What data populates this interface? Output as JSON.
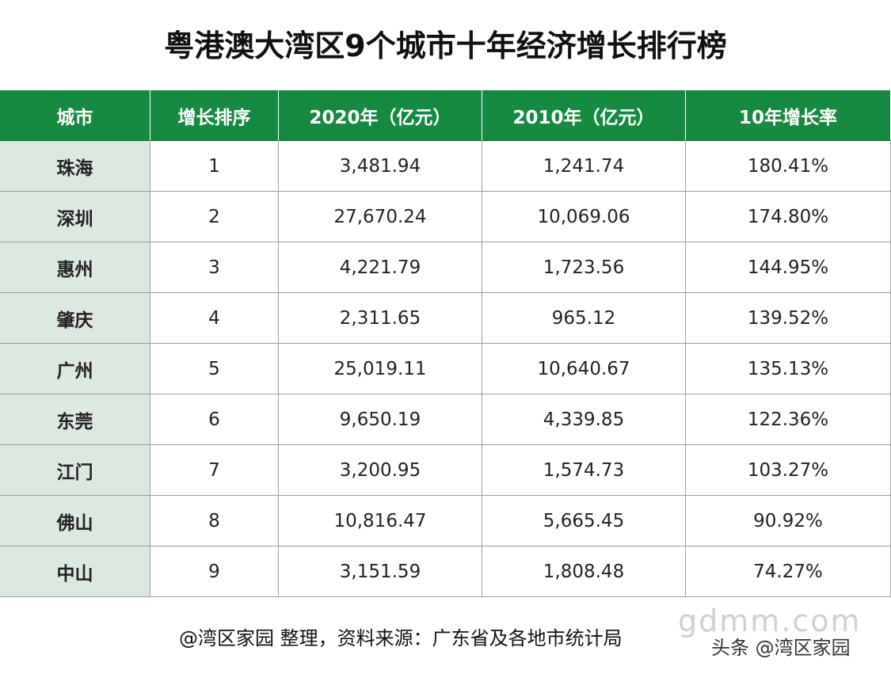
{
  "header": {
    "title": "粤港澳大湾区9个城市十年经济增长排行榜"
  },
  "table": {
    "columns": [
      "城市",
      "增长排序",
      "2020年（亿元）",
      "2010年（亿元）",
      "10年增长率"
    ],
    "rows": [
      [
        "珠海",
        "1",
        "3,481.94",
        "1,241.74",
        "180.41%"
      ],
      [
        "深圳",
        "2",
        "27,670.24",
        "10,069.06",
        "174.80%"
      ],
      [
        "惠州",
        "3",
        "4,221.79",
        "1,723.56",
        "144.95%"
      ],
      [
        "肇庆",
        "4",
        "2,311.65",
        "965.12",
        "139.52%"
      ],
      [
        "广州",
        "5",
        "25,019.11",
        "10,640.67",
        "135.13%"
      ],
      [
        "东莞",
        "6",
        "9,650.19",
        "4,339.85",
        "122.36%"
      ],
      [
        "江门",
        "7",
        "3,200.95",
        "1,574.73",
        "103.27%"
      ],
      [
        "佛山",
        "8",
        "10,816.47",
        "5,665.45",
        "90.92%"
      ],
      [
        "中山",
        "9",
        "3,151.59",
        "1,808.48",
        "74.27%"
      ]
    ]
  },
  "footer": {
    "source": "@湾区家园 整理，资料来源：广东省及各地市统计局",
    "watermark": "gdmm.com",
    "credit": "头条 @湾区家园"
  }
}
